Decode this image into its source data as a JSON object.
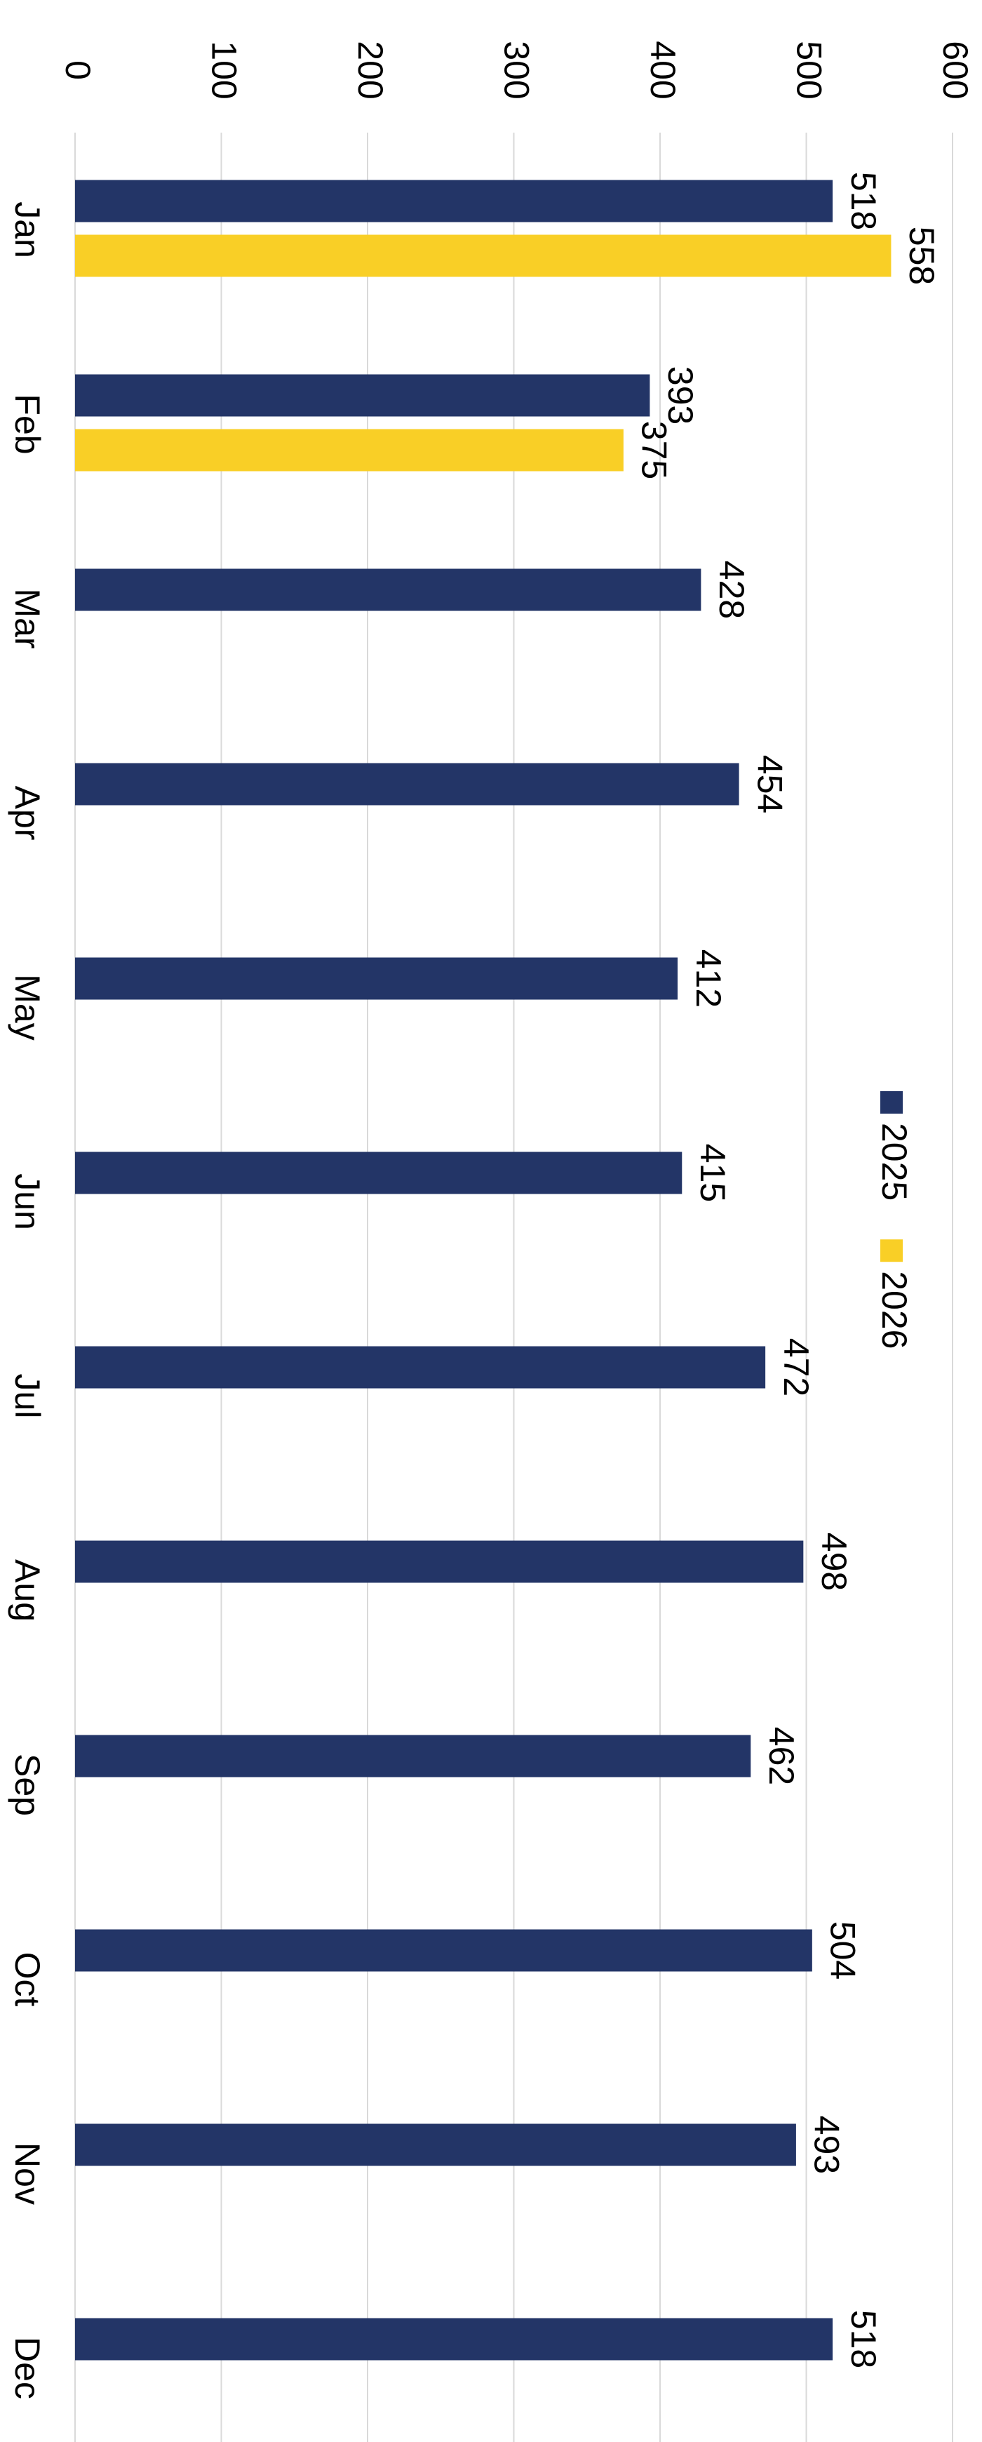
{
  "chart_data": {
    "type": "bar",
    "orientation": "horizontal",
    "categories": [
      "Jan",
      "Feb",
      "Mar",
      "Apr",
      "May",
      "Jun",
      "Jul",
      "Aug",
      "Sep",
      "Oct",
      "Nov",
      "Dec"
    ],
    "series": [
      {
        "name": "2025",
        "color": "#233567",
        "values": [
          518,
          393,
          428,
          454,
          412,
          415,
          472,
          498,
          462,
          504,
          493,
          518
        ]
      },
      {
        "name": "2026",
        "color": "#f9cf26",
        "values": [
          558,
          375,
          null,
          null,
          null,
          null,
          null,
          null,
          null,
          null,
          null,
          null
        ]
      }
    ],
    "xlim": [
      0,
      600
    ],
    "xticks": [
      0,
      100,
      200,
      300,
      400,
      500,
      600
    ],
    "grid": true,
    "data_labels": true
  }
}
